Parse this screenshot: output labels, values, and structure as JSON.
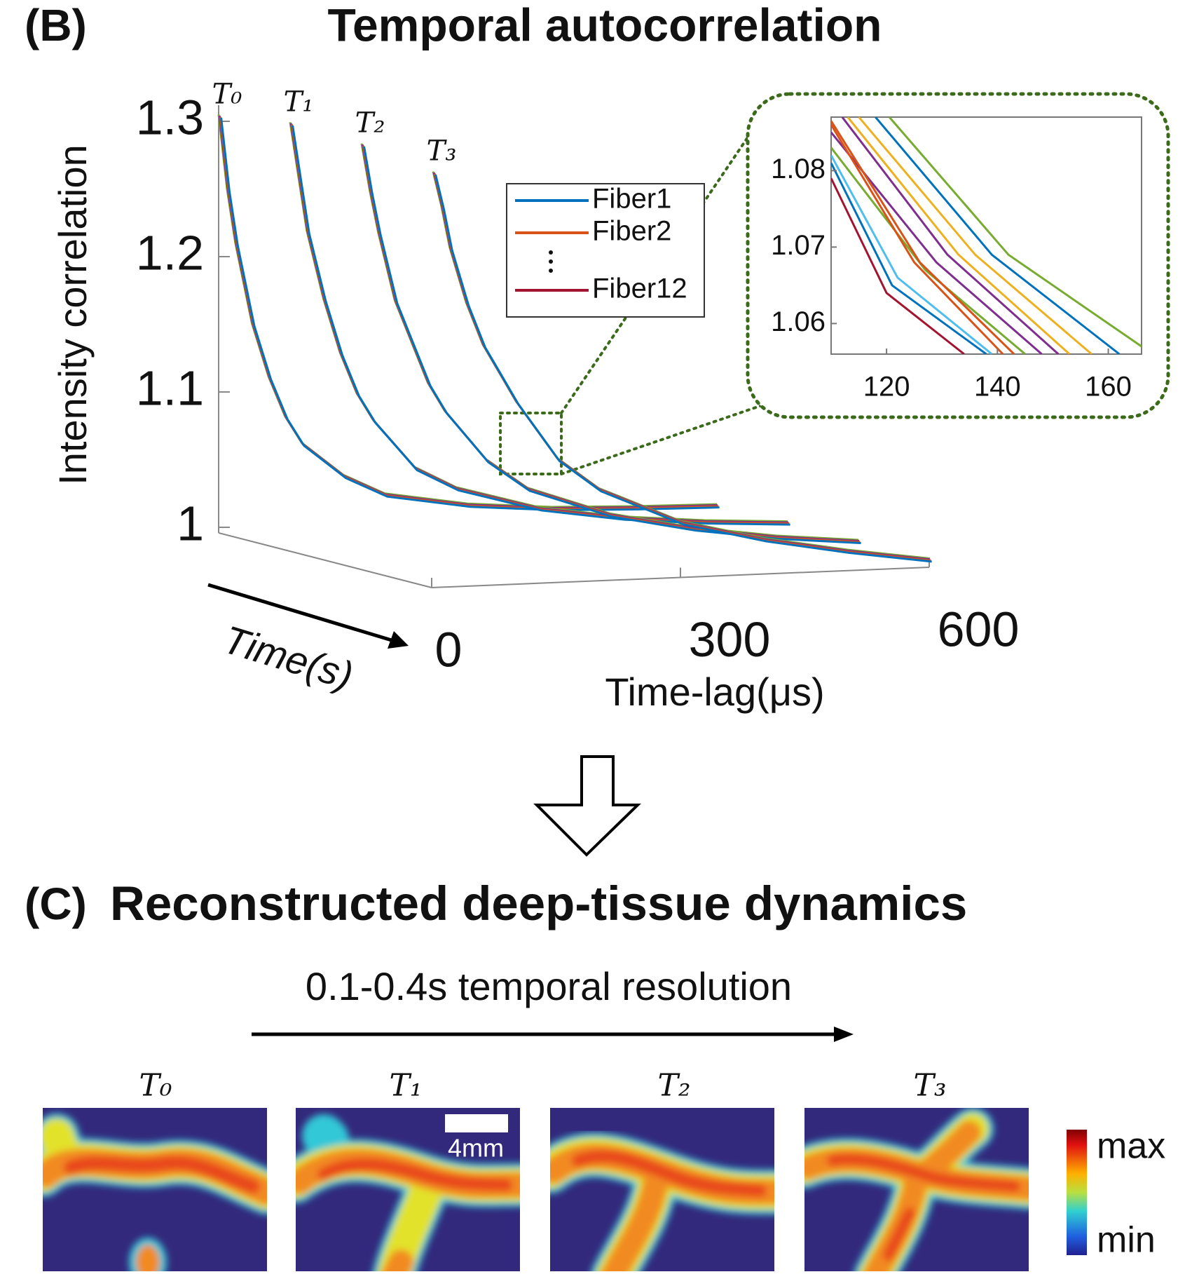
{
  "panel_b": {
    "label": "(B)"
  },
  "chart_data": [
    {
      "type": "line3d",
      "title": "Temporal autocorrelation",
      "ylabel": "Intensity correlation",
      "xlabel": "Time-lag(μs)",
      "zlabel": "Time(s)",
      "xlim": [
        0,
        600
      ],
      "xticks": [
        0,
        300,
        600
      ],
      "ylim": [
        1,
        1.3
      ],
      "yticks": [
        1,
        1.1,
        1.2,
        1.3
      ],
      "x": [
        0,
        10,
        20,
        40,
        60,
        80,
        100,
        150,
        200,
        300,
        400,
        500,
        600
      ],
      "series": [
        {
          "name": "T₀",
          "values": [
            1.305,
            1.25,
            1.21,
            1.15,
            1.11,
            1.08,
            1.06,
            1.035,
            1.02,
            1.01,
            1.005,
            1.003,
            1.002
          ]
        },
        {
          "name": "T₁",
          "values": [
            1.3,
            1.26,
            1.22,
            1.17,
            1.13,
            1.1,
            1.08,
            1.045,
            1.03,
            1.015,
            1.008,
            1.005,
            1.004
          ]
        },
        {
          "name": "T₂",
          "values": [
            1.285,
            1.25,
            1.22,
            1.17,
            1.14,
            1.11,
            1.09,
            1.055,
            1.035,
            1.018,
            1.01,
            1.006,
            1.005
          ]
        },
        {
          "name": "T₃",
          "values": [
            1.265,
            1.24,
            1.21,
            1.17,
            1.14,
            1.12,
            1.1,
            1.06,
            1.04,
            1.02,
            1.012,
            1.008,
            1.006
          ]
        }
      ],
      "line_colors": [
        "#77ac30",
        "#7e2f8e",
        "#d95319",
        "#0072bd"
      ],
      "legend": [
        {
          "name": "Fiber1",
          "color": "#0072bd"
        },
        {
          "name": "Fiber2",
          "color": "#d95319"
        },
        {
          "name": "Fiber12",
          "color": "#a2142f"
        }
      ]
    },
    {
      "type": "line",
      "xlim": [
        110,
        166
      ],
      "xticks": [
        120,
        140,
        160
      ],
      "ylim": [
        1.056,
        1.087
      ],
      "yticks": [
        1.06,
        1.07,
        1.08
      ],
      "series": [
        {
          "color": "#77ac30",
          "x": [
            120.5,
            142,
            168
          ],
          "values": [
            1.087,
            1.069,
            1.056
          ]
        },
        {
          "color": "#0072bd",
          "x": [
            118,
            139,
            162
          ],
          "values": [
            1.087,
            1.069,
            1.056
          ]
        },
        {
          "color": "#edb120",
          "x": [
            115,
            136,
            157
          ],
          "values": [
            1.087,
            1.069,
            1.056
          ]
        },
        {
          "color": "#edb120",
          "x": [
            113,
            133,
            153
          ],
          "values": [
            1.087,
            1.069,
            1.056
          ]
        },
        {
          "color": "#7e2f8e",
          "x": [
            112,
            131,
            151
          ],
          "values": [
            1.087,
            1.069,
            1.056
          ]
        },
        {
          "color": "#7e2f8e",
          "x": [
            110,
            129,
            148
          ],
          "values": [
            1.085,
            1.068,
            1.056
          ]
        },
        {
          "color": "#77ac30",
          "x": [
            110,
            127,
            145
          ],
          "values": [
            1.083,
            1.067,
            1.056
          ]
        },
        {
          "color": "#d95319",
          "x": [
            110,
            126,
            143
          ],
          "values": [
            1.0865,
            1.068,
            1.056
          ]
        },
        {
          "color": "#d95319",
          "x": [
            110,
            125,
            141
          ],
          "values": [
            1.086,
            1.068,
            1.056
          ]
        },
        {
          "color": "#4dbeee",
          "x": [
            110,
            122,
            139
          ],
          "values": [
            1.082,
            1.066,
            1.056
          ]
        },
        {
          "color": "#0072bd",
          "x": [
            110,
            121,
            138
          ],
          "values": [
            1.081,
            1.065,
            1.056
          ]
        },
        {
          "color": "#a2142f",
          "x": [
            110,
            120,
            134
          ],
          "values": [
            1.079,
            1.064,
            1.056
          ]
        }
      ]
    }
  ],
  "panel_c": {
    "label": "(C)",
    "title": "Reconstructed deep-tissue dynamics",
    "subtitle": "0.1-0.4s temporal resolution",
    "frames": [
      "T₀",
      "T₁",
      "T₂",
      "T₃"
    ],
    "scale_bar": "4mm",
    "colorbar_labels": [
      "max",
      "min"
    ]
  }
}
